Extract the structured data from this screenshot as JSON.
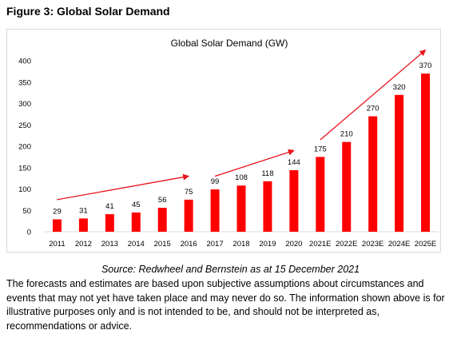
{
  "figure_title": "Figure 3: Global Solar Demand",
  "source": "Source: Redwheel and Bernstein as at 15 December 2021",
  "disclaimer": "The forecasts and estimates are based upon subjective assumptions about circumstances and events that may not yet have taken place and may never do so. The information shown above is for illustrative purposes only and is not intended to be, and should not be interpreted as, recommendations or advice.",
  "colors": {
    "bar": "#ff0000",
    "arrow": "#e8141c",
    "gridline": "#d9d9d9"
  },
  "chart_data": {
    "type": "bar",
    "title": "Global Solar Demand (GW)",
    "categories": [
      "2011",
      "2012",
      "2013",
      "2014",
      "2015",
      "2016",
      "2017",
      "2018",
      "2019",
      "2020",
      "2021E",
      "2022E",
      "2023E",
      "2024E",
      "2025E"
    ],
    "values": [
      29,
      31,
      41,
      45,
      56,
      75,
      99,
      108,
      118,
      144,
      175,
      210,
      270,
      320,
      370
    ],
    "ylim": [
      0,
      400
    ],
    "yticks": [
      0,
      50,
      100,
      150,
      200,
      250,
      300,
      350,
      400
    ],
    "grid": false,
    "legend": "none",
    "data_labels": true,
    "annotations": [
      {
        "type": "arrow",
        "from": [
          "2011",
          75
        ],
        "to": [
          "2016",
          130
        ]
      },
      {
        "type": "arrow",
        "from": [
          "2017",
          130
        ],
        "to": [
          "2020",
          190
        ]
      },
      {
        "type": "arrow",
        "from": [
          "2021E",
          215
        ],
        "to": [
          "2025E",
          425
        ]
      }
    ]
  }
}
